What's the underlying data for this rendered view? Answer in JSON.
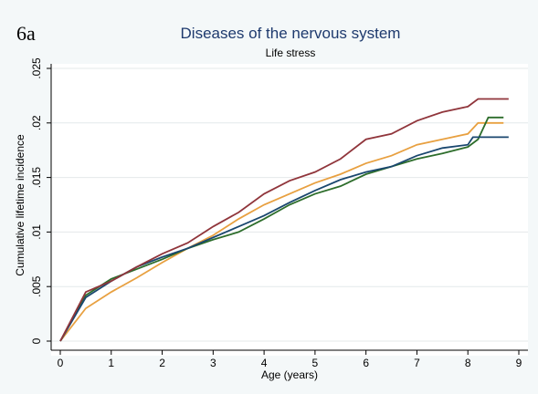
{
  "panel_label": "6a",
  "chart_data": {
    "type": "line",
    "title": "Diseases of the nervous system",
    "subtitle": "Life stress",
    "x_label": "Age (years)",
    "y_label": "Cumulative lifetime incidence",
    "xlim": [
      0,
      9
    ],
    "xticks": [
      0,
      1,
      2,
      3,
      4,
      5,
      6,
      7,
      8,
      9
    ],
    "ylim": [
      0,
      0.025
    ],
    "yticks": [
      {
        "value": 0,
        "label": "0"
      },
      {
        "value": 0.005,
        "label": ".005"
      },
      {
        "value": 0.01,
        "label": ".01"
      },
      {
        "value": 0.015,
        "label": ".015"
      },
      {
        "value": 0.02,
        "label": ".02"
      },
      {
        "value": 0.025,
        "label": ".025"
      }
    ],
    "grid": true,
    "series": [
      {
        "color": "#e8a040",
        "x": [
          0,
          0.5,
          1,
          1.5,
          2,
          2.5,
          3,
          3.5,
          4,
          4.5,
          5,
          5.5,
          6,
          6.5,
          7,
          7.5,
          8,
          8.2,
          8.7
        ],
        "values": [
          0,
          0.003,
          0.0045,
          0.0058,
          0.0072,
          0.0085,
          0.0097,
          0.0112,
          0.0125,
          0.0135,
          0.0145,
          0.0153,
          0.0163,
          0.017,
          0.018,
          0.0185,
          0.019,
          0.02,
          0.02
        ]
      },
      {
        "color": "#2d6d2b",
        "x": [
          0,
          0.5,
          1,
          1.5,
          2,
          2.5,
          3,
          3.5,
          4,
          4.5,
          5,
          5.5,
          6,
          6.5,
          7,
          7.5,
          8,
          8.2,
          8.4,
          8.7
        ],
        "values": [
          0,
          0.0042,
          0.0057,
          0.0066,
          0.0075,
          0.0085,
          0.0093,
          0.01,
          0.0112,
          0.0125,
          0.0135,
          0.0142,
          0.0153,
          0.016,
          0.0167,
          0.0172,
          0.0178,
          0.0185,
          0.0205,
          0.0205
        ]
      },
      {
        "color": "#1a476f",
        "x": [
          0,
          0.5,
          1,
          1.5,
          2,
          2.5,
          3,
          3.5,
          4,
          4.5,
          5,
          5.5,
          6,
          6.5,
          7,
          7.5,
          8,
          8.1,
          8.8
        ],
        "values": [
          0,
          0.004,
          0.0055,
          0.0068,
          0.0077,
          0.0085,
          0.0095,
          0.0105,
          0.0115,
          0.0127,
          0.0138,
          0.0148,
          0.0155,
          0.016,
          0.017,
          0.0177,
          0.018,
          0.0187,
          0.0187
        ]
      },
      {
        "color": "#90353b",
        "x": [
          0,
          0.5,
          1,
          1.5,
          2,
          2.5,
          3,
          3.5,
          4,
          4.5,
          5,
          5.5,
          6,
          6.5,
          7,
          7.5,
          8,
          8.2,
          8.8
        ],
        "values": [
          0,
          0.0045,
          0.0055,
          0.0068,
          0.008,
          0.009,
          0.0105,
          0.0118,
          0.0135,
          0.0147,
          0.0155,
          0.0167,
          0.0185,
          0.019,
          0.0202,
          0.021,
          0.0215,
          0.0222,
          0.0222
        ]
      }
    ]
  }
}
